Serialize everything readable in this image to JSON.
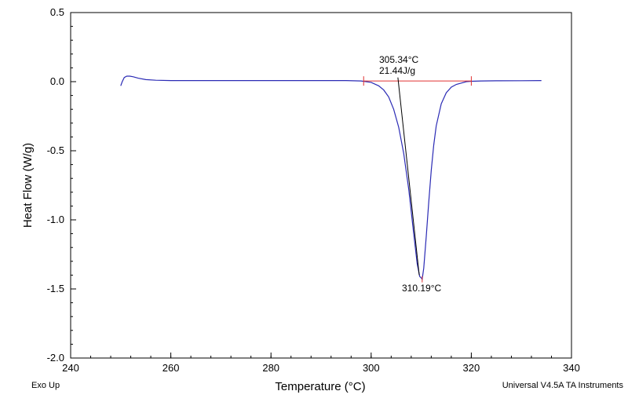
{
  "chart_data": {
    "type": "line",
    "xlabel": "Temperature (°C)",
    "ylabel": "Heat Flow (W/g)",
    "xlim": [
      240,
      340
    ],
    "ylim": [
      -2.0,
      0.5
    ],
    "x_ticks": [
      240,
      260,
      280,
      300,
      320,
      340
    ],
    "x_tick_labels": [
      "240",
      "260",
      "280",
      "300",
      "320",
      "340"
    ],
    "y_ticks": [
      0.5,
      0.0,
      -0.5,
      -1.0,
      -1.5,
      -2.0
    ],
    "y_tick_labels": [
      "0.5",
      "0.0",
      "-0.5",
      "-1.0",
      "-1.5",
      "-2.0"
    ],
    "x_minor_step": 4,
    "y_minor_step": 0.1,
    "grid": false,
    "colors": {
      "curve": "#2b2bb5",
      "baseline": "#e03030",
      "tangent": "#000000",
      "axes": "#000000"
    },
    "series": [
      {
        "name": "Heat Flow",
        "x": [
          250.0,
          250.3,
          250.7,
          251.2,
          251.8,
          252.5,
          253.5,
          255.0,
          257.0,
          260.0,
          270.0,
          280.0,
          290.0,
          295.0,
          298.0,
          300.0,
          301.5,
          302.5,
          303.5,
          304.5,
          305.5,
          306.5,
          307.5,
          308.5,
          309.2,
          309.7,
          310.0,
          310.19,
          310.5,
          311.0,
          311.5,
          312.0,
          312.5,
          313.0,
          314.0,
          315.0,
          316.0,
          317.0,
          318.0,
          319.0,
          320.0,
          322.0,
          325.0,
          330.0,
          334.0
        ],
        "y": [
          -0.03,
          0.0,
          0.03,
          0.04,
          0.04,
          0.035,
          0.025,
          0.015,
          0.01,
          0.008,
          0.008,
          0.008,
          0.008,
          0.008,
          0.005,
          -0.005,
          -0.03,
          -0.06,
          -0.11,
          -0.2,
          -0.33,
          -0.52,
          -0.78,
          -1.1,
          -1.32,
          -1.41,
          -1.42,
          -1.43,
          -1.35,
          -1.12,
          -0.87,
          -0.64,
          -0.46,
          -0.32,
          -0.16,
          -0.08,
          -0.04,
          -0.02,
          -0.01,
          0.0,
          0.003,
          0.005,
          0.006,
          0.007,
          0.008
        ]
      }
    ],
    "baseline": {
      "x": [
        298.5,
        320.0
      ],
      "y": [
        0.005,
        0.005
      ]
    },
    "tangent": {
      "x": [
        305.34,
        309.6
      ],
      "y": [
        0.03,
        -1.4
      ]
    },
    "annotations": {
      "onset_temp": "305.34°C",
      "enthalpy": "21.44J/g",
      "peak_temp": "310.19°C",
      "onset_x": 305.34,
      "peak_x": 310.19,
      "peak_y": -1.43
    }
  },
  "footer": {
    "left": "Exo Up",
    "right": "Universal V4.5A TA Instruments"
  }
}
